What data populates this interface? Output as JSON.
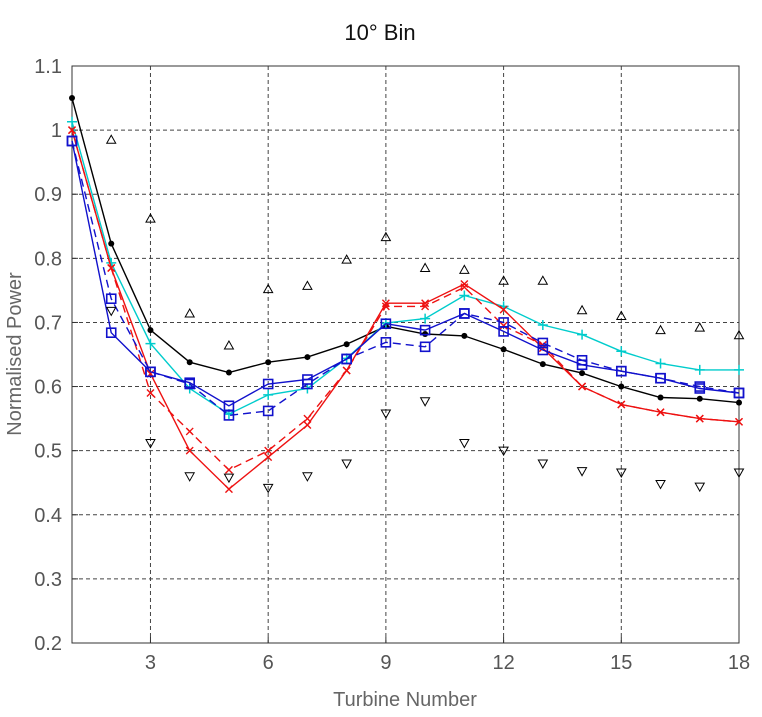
{
  "chart_data": {
    "type": "line",
    "title": "10° Bin",
    "xlabel": "Turbine Number",
    "ylabel": "Normalised Power",
    "xlim": [
      1,
      18
    ],
    "ylim": [
      0.2,
      1.1
    ],
    "xticks": [
      3,
      6,
      9,
      12,
      15,
      18
    ],
    "yticks": [
      0.2,
      0.3,
      0.4,
      0.5,
      0.6,
      0.7,
      0.8,
      0.9,
      1,
      1.1
    ],
    "xtick_labels": [
      "3",
      "6",
      "9",
      "12",
      "15",
      "18"
    ],
    "ytick_labels": [
      "0.2",
      "0.3",
      "0.4",
      "0.5",
      "0.6",
      "0.7",
      "0.8",
      "0.9",
      "1",
      "1.1"
    ],
    "grid": true,
    "series": [
      {
        "color": "#000000",
        "marker": "dot",
        "line": "solid",
        "x": [
          1,
          2,
          3,
          4,
          5,
          6,
          7,
          8,
          9,
          10,
          11,
          12,
          13,
          14,
          15,
          16,
          17,
          18
        ],
        "y": [
          1.05,
          0.823,
          0.688,
          0.638,
          0.622,
          0.638,
          0.646,
          0.666,
          0.694,
          0.682,
          0.679,
          0.658,
          0.635,
          0.621,
          0.6,
          0.583,
          0.581,
          0.575
        ]
      },
      {
        "color": "#00cccc",
        "marker": "plus",
        "line": "solid",
        "x": [
          1,
          2,
          3,
          4,
          5,
          6,
          7,
          8,
          9,
          10,
          11,
          12,
          13,
          14,
          15,
          16,
          17,
          18
        ],
        "y": [
          1.013,
          0.793,
          0.667,
          0.597,
          0.557,
          0.587,
          0.597,
          0.644,
          0.699,
          0.706,
          0.742,
          0.725,
          0.696,
          0.681,
          0.655,
          0.636,
          0.626,
          0.626
        ]
      },
      {
        "color": "#ee1111",
        "marker": "x",
        "line": "solid",
        "x": [
          1,
          2,
          3,
          4,
          5,
          6,
          7,
          8,
          9,
          10,
          11,
          12,
          13,
          14,
          15,
          16,
          17,
          18
        ],
        "y": [
          1.0,
          0.785,
          0.62,
          0.5,
          0.44,
          0.49,
          0.54,
          0.625,
          0.73,
          0.73,
          0.76,
          0.72,
          0.66,
          0.6,
          0.572,
          0.56,
          0.55,
          0.545
        ]
      },
      {
        "color": "#ee1111",
        "marker": "x",
        "line": "dashed",
        "x": [
          1,
          2,
          3,
          4,
          5,
          6,
          7,
          8,
          9,
          10,
          11,
          12,
          13,
          14,
          15,
          16,
          17,
          18
        ],
        "y": [
          1.0,
          0.785,
          0.59,
          0.53,
          0.47,
          0.5,
          0.55,
          0.625,
          0.725,
          0.725,
          0.755,
          0.695,
          0.665,
          0.6,
          0.572,
          0.56,
          0.55,
          0.545
        ]
      },
      {
        "color": "#1111cc",
        "marker": "square",
        "line": "solid",
        "x": [
          1,
          2,
          3,
          4,
          5,
          6,
          7,
          8,
          9,
          10,
          11,
          12,
          13,
          14,
          15,
          16,
          17,
          18
        ],
        "y": [
          0.983,
          0.684,
          0.623,
          0.606,
          0.57,
          0.604,
          0.611,
          0.643,
          0.698,
          0.688,
          0.714,
          0.686,
          0.657,
          0.634,
          0.624,
          0.613,
          0.597,
          0.59
        ]
      },
      {
        "color": "#1111cc",
        "marker": "square",
        "line": "dashed",
        "x": [
          1,
          2,
          3,
          4,
          5,
          6,
          7,
          8,
          9,
          10,
          11,
          12,
          13,
          14,
          15,
          16,
          17,
          18
        ],
        "y": [
          0.983,
          0.737,
          0.623,
          0.604,
          0.555,
          0.562,
          0.604,
          0.643,
          0.669,
          0.662,
          0.714,
          0.7,
          0.668,
          0.641,
          0.624,
          0.613,
          0.6,
          0.59
        ]
      },
      {
        "color": "#000000",
        "marker": "triangle-up",
        "line": "none",
        "x": [
          2,
          3,
          4,
          5,
          6,
          7,
          8,
          9,
          10,
          11,
          12,
          13,
          14,
          15,
          16,
          17,
          18
        ],
        "y": [
          0.985,
          0.862,
          0.714,
          0.664,
          0.752,
          0.757,
          0.798,
          0.833,
          0.785,
          0.782,
          0.765,
          0.765,
          0.719,
          0.71,
          0.688,
          0.692,
          0.68
        ]
      },
      {
        "color": "#000000",
        "marker": "triangle-down",
        "line": "none",
        "x": [
          2,
          3,
          4,
          5,
          6,
          7,
          8,
          9,
          10,
          11,
          12,
          13,
          14,
          15,
          16,
          17,
          18
        ],
        "y": [
          0.718,
          0.512,
          0.46,
          0.458,
          0.442,
          0.46,
          0.48,
          0.558,
          0.577,
          0.512,
          0.5,
          0.48,
          0.468,
          0.466,
          0.448,
          0.444,
          0.466
        ]
      }
    ]
  }
}
